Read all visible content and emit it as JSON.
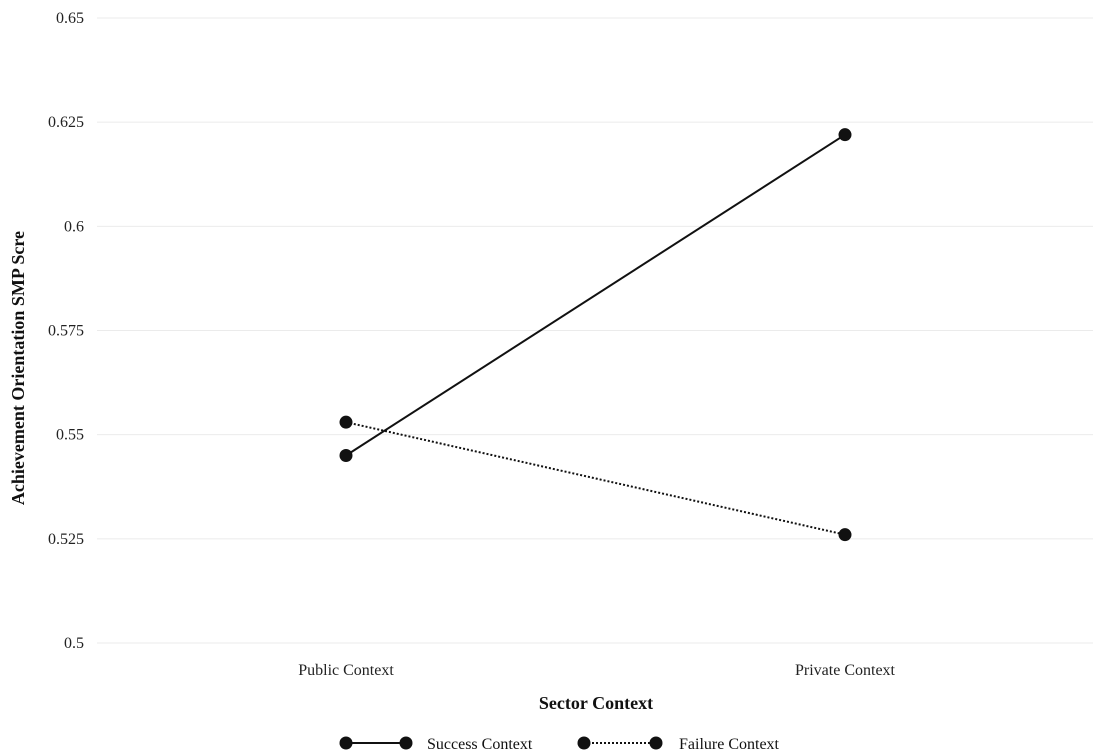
{
  "chart_data": {
    "type": "line",
    "title": "",
    "xlabel": "Sector Context",
    "ylabel": "Achievement Orientation SMP Scre",
    "categories": [
      "Public Context",
      "Private Context"
    ],
    "ylim": [
      0.5,
      0.65
    ],
    "yticks": [
      0.5,
      0.525,
      0.55,
      0.575,
      0.6,
      0.625,
      0.65
    ],
    "ytick_labels": [
      "0.5",
      "0.525",
      "0.55",
      "0.575",
      "0.6",
      "0.625",
      "0.65"
    ],
    "grid": true,
    "legend_position": "bottom",
    "series": [
      {
        "name": "Success Context",
        "values": [
          0.545,
          0.622
        ],
        "line_style": "solid",
        "color": "#111111"
      },
      {
        "name": "Failure Context",
        "values": [
          0.553,
          0.526
        ],
        "line_style": "dotted",
        "color": "#111111"
      }
    ]
  }
}
